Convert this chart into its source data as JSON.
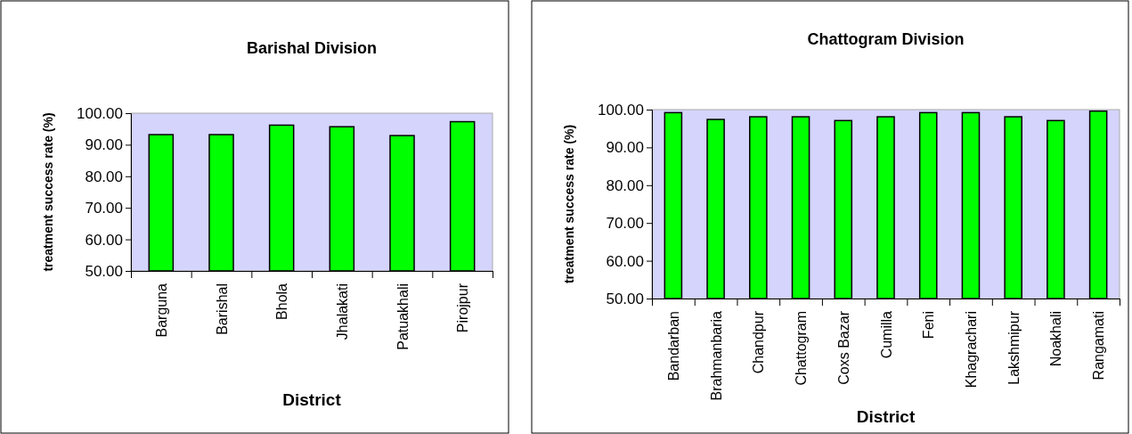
{
  "chart_data": [
    {
      "type": "bar",
      "title": "Barishal Division",
      "xlabel": "District",
      "ylabel": "treatment success rate (%)",
      "categories": [
        "Barguna",
        "Barishal",
        "Bhola",
        "Jhalakati",
        "Patuakhali",
        "Pirojpur"
      ],
      "values": [
        93.2,
        93.2,
        96.2,
        95.7,
        92.9,
        97.3
      ],
      "color": "#00ff00",
      "ylim": [
        50,
        100
      ],
      "yticks": [
        {
          "value": 50,
          "label": "50.00"
        },
        {
          "value": 60,
          "label": "60.00"
        },
        {
          "value": 70,
          "label": "70.00"
        },
        {
          "value": 80,
          "label": "80.00"
        },
        {
          "value": 90,
          "label": "90.00"
        },
        {
          "value": 100,
          "label": "100.00"
        }
      ],
      "grid": false
    },
    {
      "type": "bar",
      "title": "Chattogram Division",
      "xlabel": "District",
      "ylabel": "treatment success rate (%)",
      "categories": [
        "Bandarban",
        "Brahmanbaria",
        "Chandpur",
        "Chattogram",
        "Coxs Bazar",
        "Cumilla",
        "Feni",
        "Khagrachari",
        "Lakshmipur",
        "Noakhali",
        "Rangamati"
      ],
      "values": [
        99.2,
        97.4,
        98.1,
        98.1,
        97.1,
        98.1,
        99.2,
        99.2,
        98.1,
        97.1,
        99.6
      ],
      "color": "#00ff00",
      "ylim": [
        50,
        100
      ],
      "yticks": [
        {
          "value": 50,
          "label": "50.00"
        },
        {
          "value": 60,
          "label": "60.00"
        },
        {
          "value": 70,
          "label": "70.00"
        },
        {
          "value": 80,
          "label": "80.00"
        },
        {
          "value": 90,
          "label": "90.00"
        },
        {
          "value": 100,
          "label": "100.00"
        }
      ],
      "grid": false
    }
  ]
}
